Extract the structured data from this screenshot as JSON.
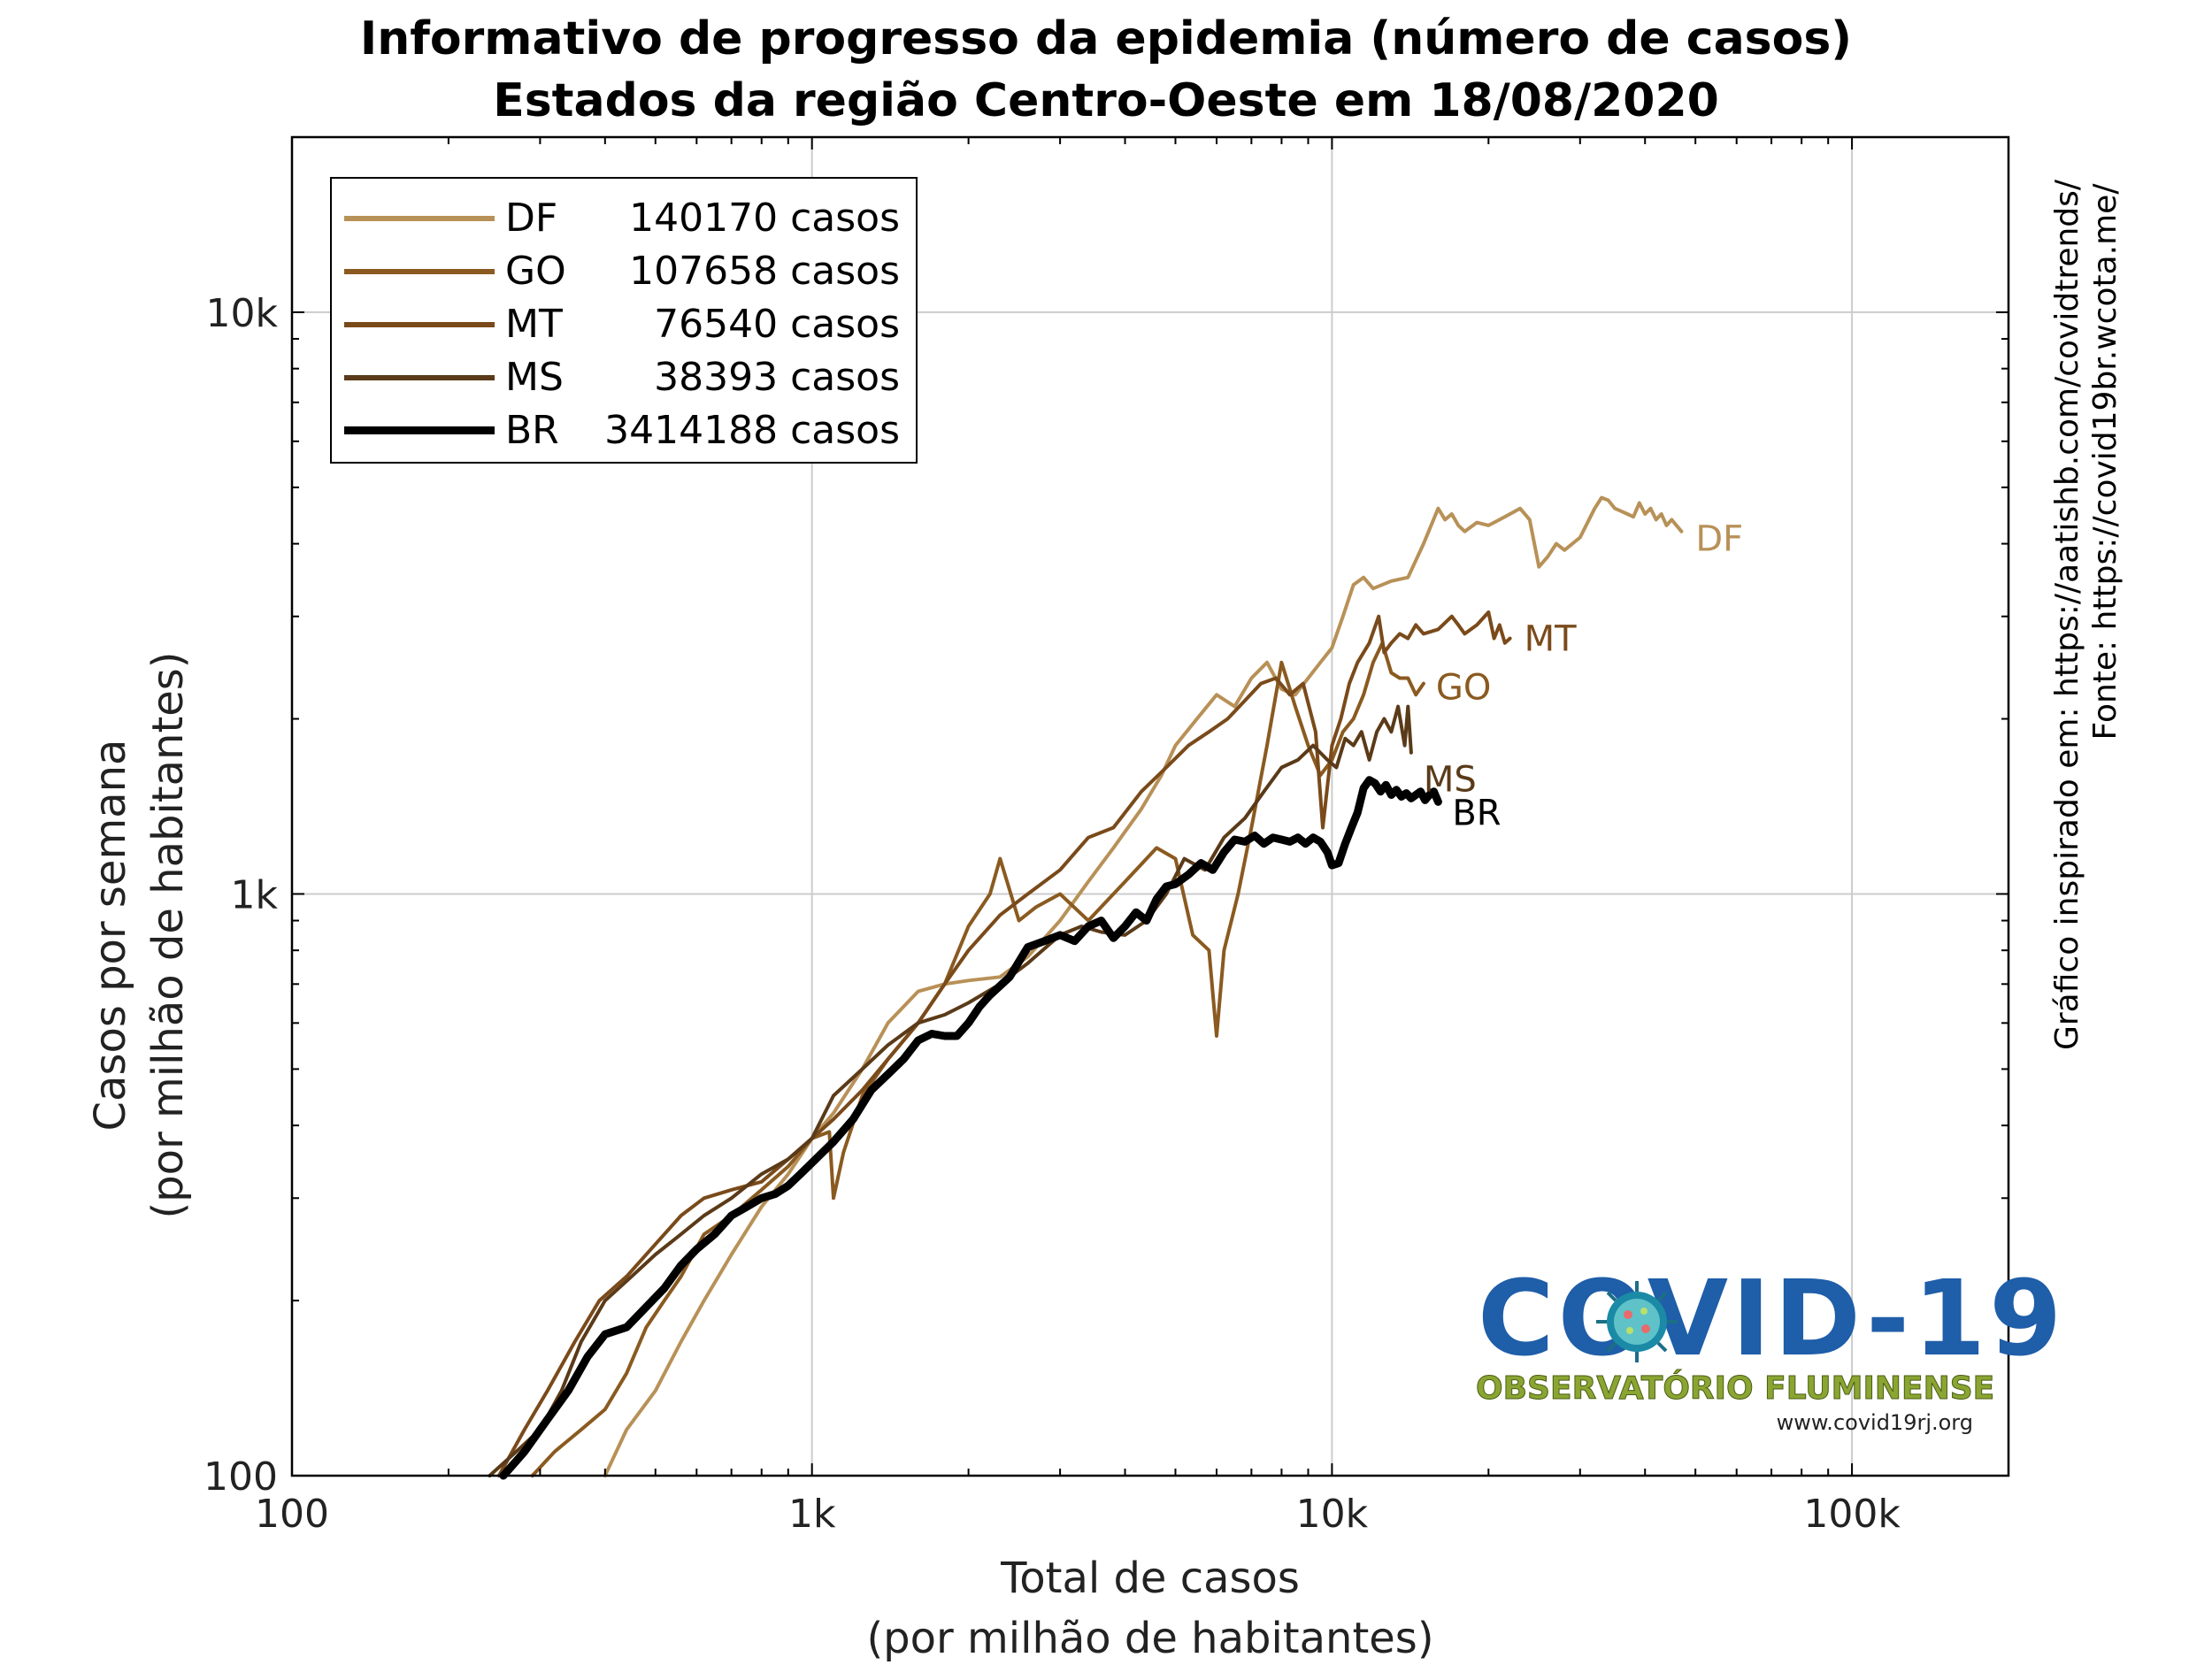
{
  "title_line1": "Informativo de progresso da epidemia (número de casos)",
  "title_line2": "Estados da região Centro-Oeste em 18/08/2020",
  "side_text1": "Gráfico inspirado em: https://aatishb.com/covidtrends/",
  "side_text2": "Fonte: https://covid19br.wcota.me/",
  "logo": {
    "title": "COVID-19",
    "subtitle": "OBSERVATÓRIO FLUMINENSE",
    "url": "www.covid19rj.org"
  },
  "chart_data": {
    "type": "line",
    "xlabel": [
      "Total de casos",
      "(por milhão de habitantes)"
    ],
    "ylabel": [
      "Casos por semana",
      "(por milhão de habitantes)"
    ],
    "x_scale": "log",
    "y_scale": "log",
    "xlim": [
      100,
      200000
    ],
    "ylim": [
      100,
      20000
    ],
    "x_ticks": [
      100,
      1000,
      10000,
      100000
    ],
    "x_tick_labels": [
      "100",
      "1k",
      "10k",
      "100k"
    ],
    "y_ticks": [
      100,
      1000,
      10000
    ],
    "y_tick_labels": [
      "100",
      "1k",
      "10k"
    ],
    "grid": true,
    "legend_position": "top-left",
    "series": [
      {
        "name": "DF",
        "legend_count": "140170 casos",
        "color": "#b89158",
        "line_width": 4,
        "x": [
          400,
          440,
          500,
          560,
          620,
          700,
          800,
          900,
          1000,
          1100,
          1250,
          1400,
          1600,
          1800,
          2000,
          2300,
          2600,
          3000,
          3400,
          3800,
          4300,
          4700,
          5000,
          5500,
          6000,
          6500,
          7000,
          7500,
          8000,
          8500,
          9000,
          9500,
          10000,
          10500,
          11000,
          11500,
          12000,
          13000,
          14000,
          15000,
          16000,
          16500,
          17000,
          17500,
          18000,
          19000,
          20000,
          21000,
          22000,
          23000,
          24000,
          25000,
          26000,
          27000,
          28000,
          30000,
          32000,
          33000,
          34000,
          35000,
          36000,
          37000,
          38000,
          39000,
          40000,
          41000,
          42000,
          43000,
          44000,
          45000,
          47000
        ],
        "y": [
          100,
          120,
          140,
          170,
          200,
          240,
          290,
          330,
          380,
          420,
          500,
          600,
          680,
          700,
          710,
          720,
          780,
          900,
          1050,
          1200,
          1400,
          1600,
          1800,
          2000,
          2200,
          2100,
          2350,
          2500,
          2250,
          2200,
          2350,
          2500,
          2650,
          3000,
          3400,
          3500,
          3350,
          3450,
          3500,
          4000,
          4600,
          4400,
          4500,
          4300,
          4200,
          4350,
          4300,
          4400,
          4500,
          4600,
          4400,
          3650,
          3800,
          4000,
          3900,
          4100,
          4600,
          4800,
          4750,
          4600,
          4550,
          4500,
          4450,
          4700,
          4500,
          4600,
          4400,
          4500,
          4300,
          4400,
          4200
        ]
      },
      {
        "name": "GO",
        "legend_count": "107658 casos",
        "color": "#8a5a20",
        "line_width": 4,
        "x": [
          290,
          320,
          360,
          400,
          440,
          480,
          520,
          560,
          620,
          700,
          800,
          900,
          1000,
          1080,
          1100,
          1150,
          1250,
          1400,
          1600,
          1800,
          2000,
          2200,
          2300,
          2500,
          2700,
          3000,
          3400,
          3800,
          4200,
          4600,
          5000,
          5400,
          5800,
          6000,
          6200,
          6600,
          7000,
          7500,
          8000,
          8500,
          9000,
          9500,
          10000,
          10500,
          11000,
          11500,
          12000,
          12500,
          13000,
          13500,
          14000,
          14500,
          15000
        ],
        "y": [
          100,
          110,
          120,
          130,
          150,
          180,
          200,
          220,
          260,
          280,
          310,
          340,
          380,
          390,
          300,
          360,
          450,
          520,
          600,
          700,
          880,
          1000,
          1150,
          900,
          950,
          1000,
          900,
          1000,
          1100,
          1200,
          1150,
          850,
          800,
          570,
          800,
          1000,
          1300,
          1800,
          2500,
          2100,
          1800,
          1600,
          1700,
          1900,
          2000,
          2200,
          2500,
          2700,
          2400,
          2350,
          2350,
          2200,
          2300
        ]
      },
      {
        "name": "MT",
        "legend_count": "76540 casos",
        "color": "#7a4a1a",
        "line_width": 4,
        "x": [
          250,
          280,
          310,
          350,
          390,
          440,
          500,
          560,
          620,
          700,
          800,
          900,
          1000,
          1100,
          1250,
          1400,
          1600,
          1800,
          2000,
          2300,
          2600,
          3000,
          3400,
          3800,
          4300,
          4800,
          5300,
          5800,
          6300,
          6800,
          7300,
          7800,
          8300,
          8800,
          9300,
          9600,
          10000,
          10400,
          10800,
          11200,
          11800,
          12300,
          12600,
          13000,
          13500,
          14000,
          14500,
          15000,
          16000,
          17000,
          17500,
          18000,
          19000,
          20000,
          20500,
          21000,
          21500,
          22000
        ],
        "y": [
          100,
          120,
          140,
          170,
          200,
          220,
          250,
          280,
          300,
          310,
          320,
          350,
          380,
          410,
          460,
          520,
          600,
          700,
          800,
          920,
          1000,
          1100,
          1250,
          1300,
          1500,
          1650,
          1800,
          1900,
          2000,
          2150,
          2300,
          2350,
          2200,
          2300,
          1900,
          1300,
          1800,
          2000,
          2300,
          2500,
          2700,
          3000,
          2600,
          2700,
          2800,
          2750,
          2900,
          2800,
          2850,
          3000,
          2900,
          2800,
          2900,
          3050,
          2750,
          2900,
          2700,
          2750
        ]
      },
      {
        "name": "MS",
        "legend_count": "38393 casos",
        "color": "#5a3a18",
        "line_width": 4,
        "x": [
          240,
          270,
          300,
          330,
          360,
          400,
          450,
          500,
          560,
          620,
          700,
          800,
          900,
          1000,
          1100,
          1250,
          1400,
          1600,
          1800,
          2000,
          2300,
          2600,
          3000,
          3300,
          3600,
          4000,
          4400,
          4800,
          5200,
          5700,
          6200,
          6800,
          7400,
          8000,
          8600,
          9200,
          9800,
          10200,
          10600,
          11000,
          11400,
          11800,
          12200,
          12600,
          13000,
          13400,
          13800,
          14000,
          14200
        ],
        "y": [
          100,
          110,
          120,
          140,
          170,
          200,
          220,
          240,
          260,
          280,
          300,
          330,
          350,
          380,
          450,
          500,
          550,
          600,
          620,
          650,
          700,
          760,
          850,
          880,
          860,
          850,
          900,
          1000,
          1150,
          1100,
          1250,
          1350,
          1500,
          1650,
          1700,
          1800,
          1700,
          1650,
          1850,
          1800,
          1900,
          1700,
          1900,
          2000,
          1900,
          2100,
          1800,
          2100,
          1750
        ]
      },
      {
        "name": "BR",
        "legend_count": "3414188 casos",
        "color": "#000000",
        "line_width": 9,
        "x": [
          255,
          280,
          310,
          340,
          370,
          400,
          440,
          480,
          520,
          560,
          600,
          650,
          700,
          750,
          800,
          850,
          900,
          950,
          1000,
          1050,
          1100,
          1200,
          1300,
          1400,
          1500,
          1600,
          1700,
          1800,
          1900,
          2000,
          2100,
          2200,
          2400,
          2600,
          2800,
          3000,
          3200,
          3400,
          3600,
          3800,
          4000,
          4200,
          4400,
          4600,
          4800,
          5000,
          5300,
          5600,
          5900,
          6200,
          6500,
          6800,
          7100,
          7400,
          7700,
          8000,
          8300,
          8600,
          8900,
          9200,
          9500,
          9800,
          10000,
          10300,
          10600,
          10900,
          11200,
          11500,
          11800,
          12100,
          12400,
          12700,
          13000,
          13300,
          13600,
          13900,
          14200,
          14500,
          14800,
          15100,
          15400,
          15700,
          16000
        ],
        "y": [
          100,
          110,
          125,
          140,
          160,
          175,
          180,
          195,
          210,
          230,
          245,
          260,
          280,
          290,
          300,
          305,
          315,
          330,
          345,
          360,
          375,
          410,
          460,
          490,
          520,
          560,
          575,
          570,
          570,
          600,
          640,
          670,
          720,
          810,
          830,
          850,
          830,
          880,
          900,
          840,
          880,
          930,
          900,
          980,
          1030,
          1040,
          1080,
          1130,
          1100,
          1180,
          1240,
          1230,
          1260,
          1220,
          1250,
          1240,
          1230,
          1250,
          1220,
          1250,
          1230,
          1180,
          1120,
          1130,
          1220,
          1300,
          1380,
          1520,
          1570,
          1550,
          1500,
          1540,
          1480,
          1510,
          1470,
          1490,
          1460,
          1480,
          1500,
          1450,
          1480,
          1500,
          1440
        ]
      }
    ]
  }
}
